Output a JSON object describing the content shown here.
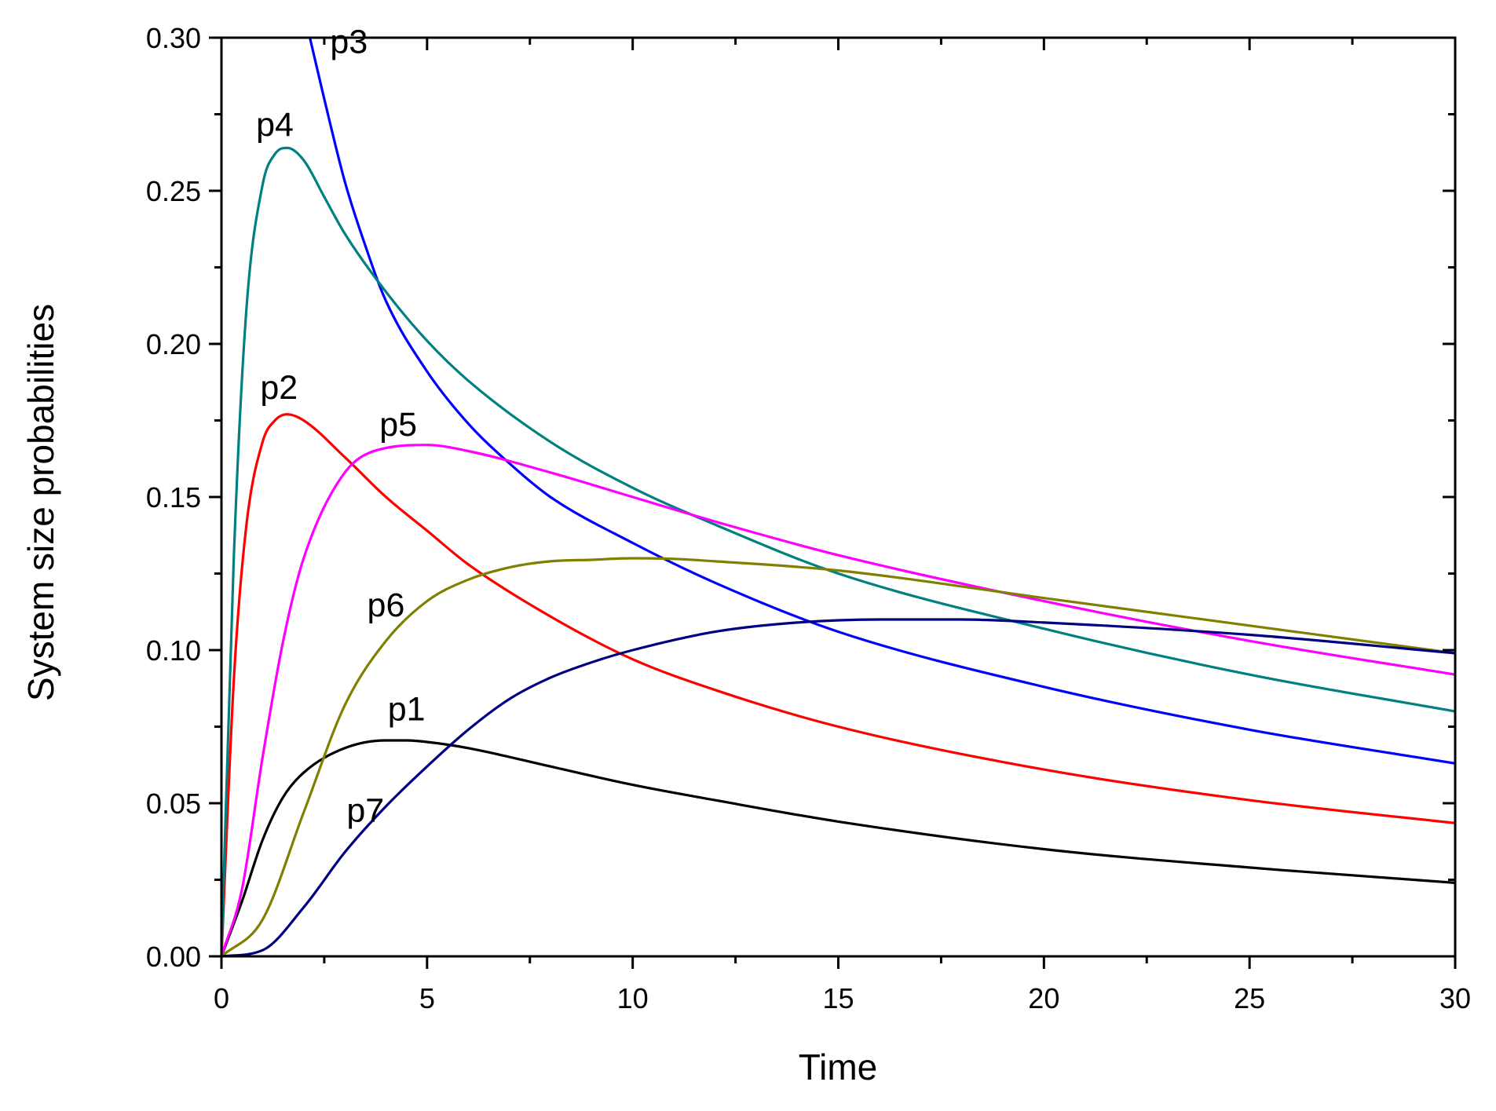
{
  "chart_data": {
    "type": "line",
    "title": "",
    "xlabel": "Time",
    "ylabel": "System size probabilities",
    "xlim": [
      0,
      30
    ],
    "ylim": [
      0,
      0.3
    ],
    "x_ticks": [
      0,
      5,
      10,
      15,
      20,
      25,
      30
    ],
    "x_tick_labels": [
      "0",
      "5",
      "10",
      "15",
      "20",
      "25",
      "30"
    ],
    "y_ticks": [
      0,
      0.05,
      0.1,
      0.15,
      0.2,
      0.25,
      0.3
    ],
    "y_tick_labels": [
      "0.00",
      "0.05",
      "0.10",
      "0.15",
      "0.20",
      "0.25",
      "0.30"
    ],
    "grid": false,
    "legend": "inline labels",
    "series": [
      {
        "name": "p1",
        "color": "#000000",
        "label_at": [
          4.5,
          0.077
        ],
        "x": [
          0,
          0.5,
          1,
          1.5,
          2,
          3,
          4,
          4.5,
          5,
          6,
          8,
          10,
          12,
          15,
          20,
          25,
          30
        ],
        "values": [
          0,
          0.018,
          0.038,
          0.052,
          0.06,
          0.068,
          0.0705,
          0.0705,
          0.07,
          0.068,
          0.062,
          0.056,
          0.051,
          0.044,
          0.035,
          0.029,
          0.024
        ]
      },
      {
        "name": "p2",
        "color": "#ff0000",
        "label_at": [
          1.4,
          0.182
        ],
        "x": [
          0,
          0.3,
          0.6,
          1,
          1.3,
          1.6,
          2,
          3,
          4,
          5,
          6,
          8,
          10,
          12,
          15,
          20,
          25,
          30
        ],
        "values": [
          0,
          0.09,
          0.14,
          0.168,
          0.175,
          0.177,
          0.175,
          0.163,
          0.15,
          0.139,
          0.128,
          0.111,
          0.097,
          0.087,
          0.075,
          0.061,
          0.051,
          0.0435
        ]
      },
      {
        "name": "p3",
        "color": "#0000ff",
        "label_at": [
          3.1,
          0.295
        ],
        "x": [
          2.15,
          2.5,
          3,
          3.5,
          4,
          5,
          6,
          7,
          8,
          10,
          12,
          15,
          20,
          25,
          30
        ],
        "values": [
          0.3,
          0.28,
          0.253,
          0.232,
          0.214,
          0.191,
          0.174,
          0.161,
          0.15,
          0.135,
          0.122,
          0.106,
          0.088,
          0.074,
          0.063
        ]
      },
      {
        "name": "p4",
        "color": "#008080",
        "label_at": [
          1.3,
          0.268
        ],
        "x": [
          0,
          0.3,
          0.6,
          1,
          1.3,
          1.6,
          2,
          2.5,
          3,
          4,
          5,
          6,
          8,
          10,
          12,
          15,
          20,
          25,
          30
        ],
        "values": [
          0,
          0.13,
          0.21,
          0.252,
          0.262,
          0.264,
          0.26,
          0.248,
          0.236,
          0.217,
          0.201,
          0.188,
          0.168,
          0.153,
          0.141,
          0.125,
          0.107,
          0.092,
          0.08
        ]
      },
      {
        "name": "p5",
        "color": "#ff00ff",
        "label_at": [
          4.3,
          0.17
        ],
        "x": [
          0,
          0.5,
          1,
          1.5,
          2,
          3,
          4,
          5,
          6,
          8,
          10,
          12,
          15,
          20,
          25,
          30
        ],
        "values": [
          0,
          0.022,
          0.065,
          0.103,
          0.13,
          0.158,
          0.166,
          0.167,
          0.165,
          0.158,
          0.15,
          0.142,
          0.131,
          0.116,
          0.103,
          0.092
        ]
      },
      {
        "name": "p6",
        "color": "#808000",
        "label_at": [
          4.0,
          0.111
        ],
        "x": [
          0,
          1,
          2,
          3,
          4,
          5,
          6,
          7,
          8,
          9,
          10,
          11,
          12,
          15,
          20,
          25,
          30
        ],
        "values": [
          0,
          0.012,
          0.047,
          0.082,
          0.103,
          0.116,
          0.123,
          0.127,
          0.129,
          0.1295,
          0.13,
          0.1298,
          0.129,
          0.126,
          0.117,
          0.108,
          0.099
        ]
      },
      {
        "name": "p7",
        "color": "#000080",
        "label_at": [
          3.5,
          0.044
        ],
        "x": [
          0,
          1,
          2,
          3,
          4,
          5,
          6,
          7,
          8,
          9,
          10,
          12,
          14,
          16,
          18,
          20,
          25,
          30
        ],
        "values": [
          0,
          0.002,
          0.016,
          0.034,
          0.049,
          0.062,
          0.074,
          0.084,
          0.091,
          0.096,
          0.1,
          0.106,
          0.109,
          0.11,
          0.11,
          0.109,
          0.105,
          0.099
        ]
      }
    ]
  }
}
